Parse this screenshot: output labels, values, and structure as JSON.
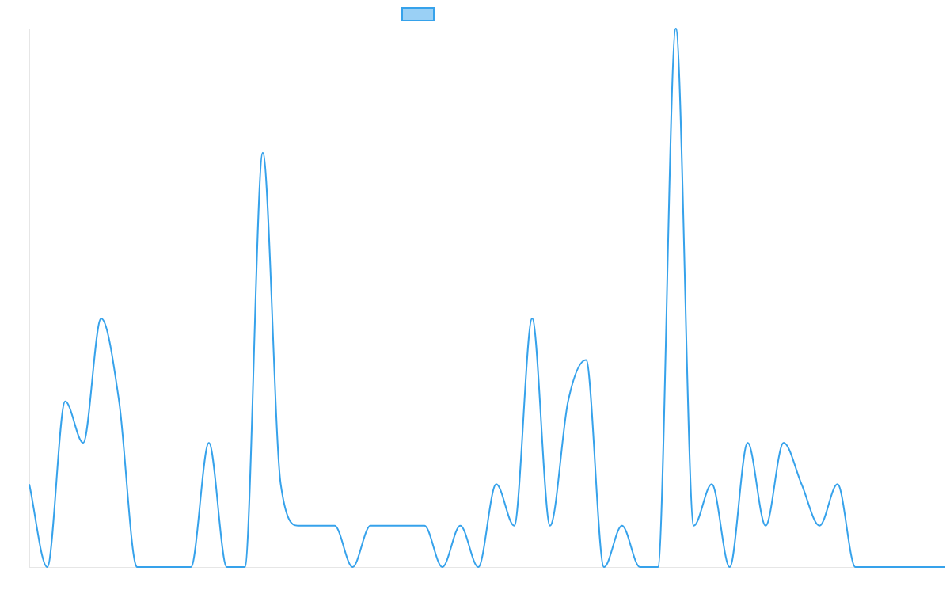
{
  "colors": {
    "line": "#36a2eb",
    "legend_fill": "#9ad0f5",
    "axis": "#e6e6e6"
  },
  "chart_data": {
    "type": "line",
    "title": "",
    "xlabel": "",
    "ylabel": "",
    "grid": false,
    "legend_placement": "top-center",
    "series": [
      {
        "label": "",
        "values": [
          2,
          0,
          4,
          3,
          6,
          4,
          0,
          0,
          0,
          0,
          3,
          0,
          0,
          10,
          2,
          1,
          1,
          1,
          0,
          1,
          1,
          1,
          1,
          0,
          1,
          0,
          2,
          1,
          6,
          1,
          4,
          5,
          0,
          1,
          0,
          0,
          13,
          1,
          2,
          0,
          3,
          1,
          3,
          2,
          1,
          2,
          0,
          0,
          0,
          0,
          0,
          0
        ]
      }
    ],
    "ylim": [
      0,
      13
    ]
  }
}
